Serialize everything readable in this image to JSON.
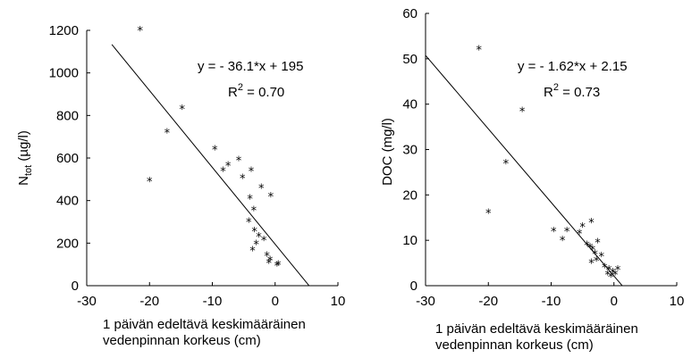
{
  "chart_data": [
    {
      "type": "scatter",
      "title": "",
      "ylabel_main": "N",
      "ylabel_sub": "tot",
      "ylabel_unit": " (µg/l)",
      "xlabel_line1": "1 päivän edeltävä keskimääräinen",
      "xlabel_line2": "vedenpinnan korkeus (cm)",
      "xlim": [
        -30,
        10
      ],
      "ylim": [
        0,
        1200
      ],
      "xticks": [
        "-30",
        "-20",
        "-10",
        "0",
        "10"
      ],
      "yticks": [
        "0",
        "200",
        "400",
        "600",
        "800",
        "1000",
        "1200"
      ],
      "equation": "y = - 36.1*x + 195",
      "r2_label": "R",
      "r2_sup": "2",
      "r2_value": " = 0.70",
      "fit": {
        "slope": -36.1,
        "intercept": 195,
        "x_range": [
          -26,
          5.4
        ]
      },
      "points": [
        [
          -21.5,
          1200
        ],
        [
          -20,
          490
        ],
        [
          -17.2,
          720
        ],
        [
          -14.8,
          830
        ],
        [
          -9.6,
          640
        ],
        [
          -8.3,
          540
        ],
        [
          -7.5,
          565
        ],
        [
          -5.8,
          590
        ],
        [
          -5.2,
          505
        ],
        [
          -3.8,
          540
        ],
        [
          -4.0,
          410
        ],
        [
          -3.4,
          355
        ],
        [
          -2.2,
          460
        ],
        [
          -0.7,
          420
        ],
        [
          -4.2,
          300
        ],
        [
          -3.3,
          255
        ],
        [
          -2.6,
          230
        ],
        [
          -1.8,
          215
        ],
        [
          -3.6,
          165
        ],
        [
          -3.0,
          195
        ],
        [
          -1.3,
          140
        ],
        [
          -1.0,
          108
        ],
        [
          -0.8,
          120
        ],
        [
          0.3,
          95
        ],
        [
          0.5,
          98
        ]
      ]
    },
    {
      "type": "scatter",
      "title": "",
      "ylabel_main": "DOC",
      "ylabel_sub": "",
      "ylabel_unit": " (mg/l)",
      "xlabel_line1": "1 päivän edeltävä keskimääräinen",
      "xlabel_line2": "vedenpinnan korkeus (cm)",
      "xlim": [
        -30,
        10
      ],
      "ylim": [
        0,
        60
      ],
      "xticks": [
        "-30",
        "-20",
        "-10",
        "0",
        "10"
      ],
      "yticks": [
        "0",
        "10",
        "20",
        "30",
        "40",
        "50",
        "60"
      ],
      "equation": "y = - 1.62*x + 2.15",
      "r2_label": "R",
      "r2_sup": "2",
      "r2_value": " = 0.73",
      "fit": {
        "slope": -1.62,
        "intercept": 2.15,
        "x_range": [
          -30,
          1.33
        ]
      },
      "points": [
        [
          -21.5,
          52
        ],
        [
          -20,
          16
        ],
        [
          -17.2,
          27
        ],
        [
          -14.6,
          38.5
        ],
        [
          -9.6,
          12
        ],
        [
          -8.2,
          10
        ],
        [
          -7.5,
          12
        ],
        [
          -5.5,
          11.5
        ],
        [
          -5.0,
          13
        ],
        [
          -3.6,
          14
        ],
        [
          -4.3,
          9
        ],
        [
          -3.8,
          8.5
        ],
        [
          -3.4,
          8
        ],
        [
          -2.6,
          9.5
        ],
        [
          -3.0,
          7
        ],
        [
          -2.0,
          6.5
        ],
        [
          -2.8,
          5.5
        ],
        [
          -3.6,
          5
        ],
        [
          -1.5,
          4
        ],
        [
          -0.8,
          3.5
        ],
        [
          -1.0,
          2.5
        ],
        [
          -0.5,
          2
        ],
        [
          0.2,
          2.5
        ],
        [
          0.6,
          3.5
        ],
        [
          -0.2,
          3
        ]
      ]
    }
  ]
}
